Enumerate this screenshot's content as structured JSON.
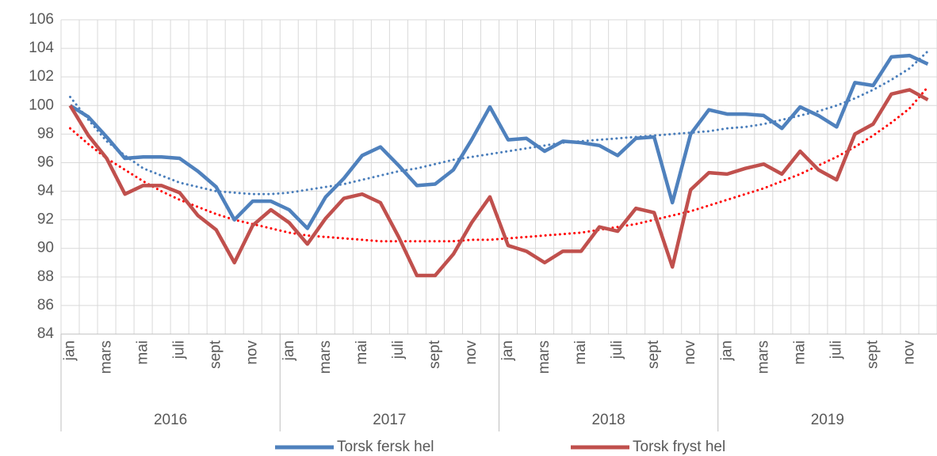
{
  "chart_data": {
    "type": "line",
    "categories": [
      "jan",
      null,
      "mars",
      null,
      "mai",
      null,
      "juli",
      null,
      "sept",
      null,
      "nov",
      null,
      "jan",
      null,
      "mars",
      null,
      "mai",
      null,
      "juli",
      null,
      "sept",
      null,
      "nov",
      null,
      "jan",
      null,
      "mars",
      null,
      "mai",
      null,
      "juli",
      null,
      "sept",
      null,
      "nov",
      null,
      "jan",
      null,
      "mars",
      null,
      "mai",
      null,
      "juli",
      null,
      "sept",
      null,
      "nov",
      null
    ],
    "years": [
      "2016",
      "2017",
      "2018",
      "2019"
    ],
    "series": [
      {
        "name": "Torsk fersk hel",
        "color": "#4f81bd",
        "values": [
          100,
          99.2,
          97.8,
          96.3,
          96.4,
          96.4,
          96.3,
          95.4,
          94.3,
          92.0,
          93.3,
          93.3,
          92.7,
          91.4,
          93.6,
          94.9,
          96.5,
          97.1,
          95.8,
          94.4,
          94.5,
          95.5,
          97.6,
          99.9,
          97.6,
          97.7,
          96.8,
          97.5,
          97.4,
          97.2,
          96.5,
          97.7,
          97.8,
          93.2,
          98.0,
          99.7,
          99.4,
          99.4,
          99.3,
          98.4,
          99.9,
          99.3,
          98.5,
          101.6,
          101.4,
          103.4,
          103.5,
          102.9
        ]
      },
      {
        "name": "Torsk fryst hel",
        "color": "#c0504d",
        "values": [
          100,
          97.9,
          96.3,
          93.8,
          94.4,
          94.4,
          93.9,
          92.3,
          91.3,
          89.0,
          91.6,
          92.7,
          91.8,
          90.3,
          92.1,
          93.5,
          93.8,
          93.2,
          90.8,
          88.1,
          88.1,
          89.6,
          91.8,
          93.6,
          90.2,
          89.8,
          89.0,
          89.8,
          89.8,
          91.5,
          91.2,
          92.8,
          92.5,
          88.7,
          94.1,
          95.3,
          95.2,
          95.6,
          95.9,
          95.2,
          96.8,
          95.5,
          94.8,
          98.0,
          98.7,
          100.8,
          101.1,
          100.4
        ]
      }
    ],
    "trendlines": [
      {
        "color": "#4a7ebb",
        "values": [
          100.6,
          99.0,
          97.5,
          96.5,
          95.6,
          95.1,
          94.6,
          94.3,
          94.0,
          93.9,
          93.8,
          93.8,
          93.9,
          94.1,
          94.3,
          94.5,
          94.8,
          95.1,
          95.4,
          95.6,
          95.9,
          96.2,
          96.4,
          96.6,
          96.8,
          97.0,
          97.2,
          97.4,
          97.5,
          97.6,
          97.7,
          97.8,
          97.9,
          98.0,
          98.1,
          98.2,
          98.4,
          98.5,
          98.7,
          99.0,
          99.3,
          99.6,
          100.0,
          100.5,
          101.1,
          101.8,
          102.6,
          103.8
        ]
      },
      {
        "color": "#ff0000",
        "values": [
          98.4,
          97.3,
          96.3,
          95.5,
          94.7,
          94.0,
          93.4,
          92.9,
          92.4,
          92.0,
          91.7,
          91.4,
          91.1,
          90.9,
          90.8,
          90.7,
          90.6,
          90.5,
          90.5,
          90.5,
          90.5,
          90.5,
          90.6,
          90.6,
          90.7,
          90.8,
          90.9,
          91.0,
          91.1,
          91.3,
          91.5,
          91.7,
          92.0,
          92.3,
          92.6,
          93.0,
          93.4,
          93.8,
          94.2,
          94.7,
          95.2,
          95.8,
          96.4,
          97.1,
          97.9,
          98.8,
          99.8,
          101.3
        ]
      }
    ],
    "ylim": [
      84,
      106
    ],
    "yticks": [
      84,
      86,
      88,
      90,
      92,
      94,
      96,
      98,
      100,
      102,
      104,
      106
    ],
    "grid": true
  }
}
